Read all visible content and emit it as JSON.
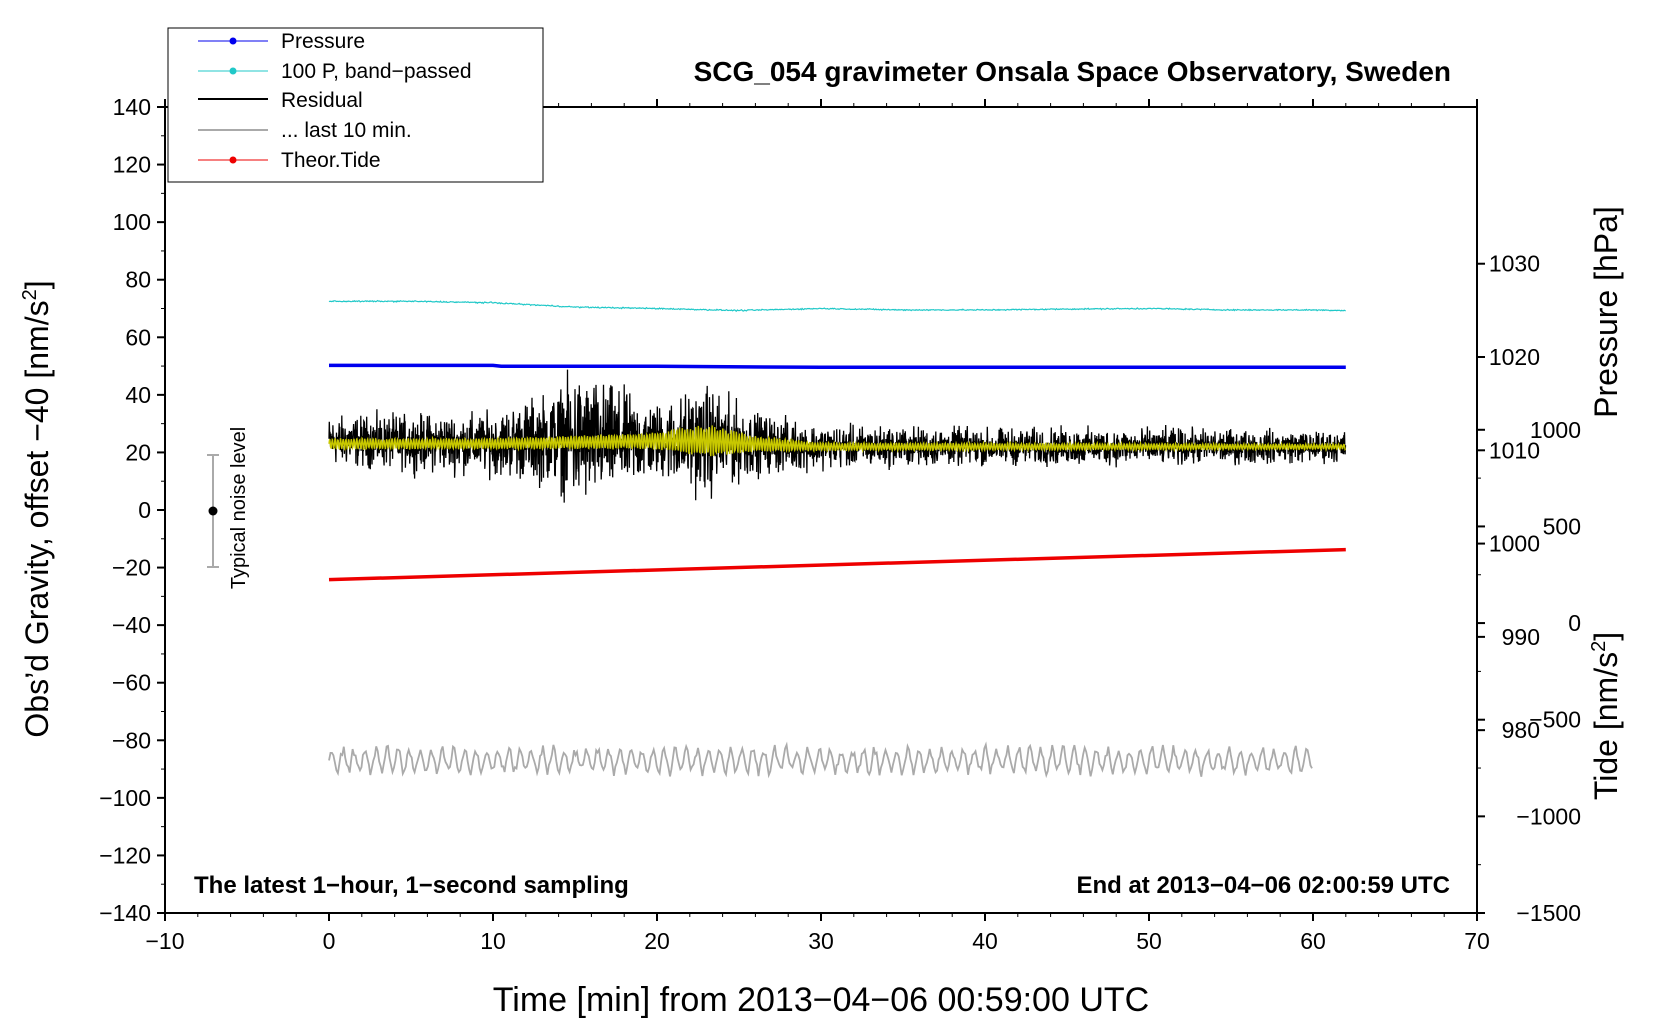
{
  "chart_data": {
    "type": "line",
    "title": "SCG_054 gravimeter Onsala Space Observatory, Sweden",
    "xlabel": "Time [min] from 2013−04−06 00:59:00 UTC",
    "ylabel_left_main": "Obs’d Gravity, offset −40 [nm/s",
    "ylabel_left_sup": "2",
    "ylabel_left_close": "]",
    "ylabel_pressure": "Pressure [hPa]",
    "ylabel_tide_main": "Tide [nm/s",
    "ylabel_tide_sup": "2",
    "ylabel_tide_close": "]",
    "xlim": [
      -10,
      70
    ],
    "ylim": [
      -140,
      140
    ],
    "x_ticks": [
      -10,
      0,
      10,
      20,
      30,
      40,
      50,
      60,
      70
    ],
    "x_tick_labels": [
      "−10",
      "0",
      "10",
      "20",
      "30",
      "40",
      "50",
      "60",
      "70"
    ],
    "y_ticks": [
      -140,
      -120,
      -100,
      -80,
      -60,
      -40,
      -20,
      0,
      20,
      40,
      60,
      80,
      100,
      120,
      140
    ],
    "y_tick_labels": [
      "−140",
      "−120",
      "−100",
      "−80",
      "−60",
      "−40",
      "−20",
      "0",
      "20",
      "40",
      "60",
      "80",
      "100",
      "120",
      "140"
    ],
    "pressure_axis": {
      "ticks": [
        980,
        990,
        1000,
        1010,
        1020,
        1030
      ],
      "tick_labels": [
        "980",
        "990",
        "1000",
        "1010",
        "1020",
        "1030"
      ],
      "range": [
        960.4,
        1046.8
      ]
    },
    "tide_axis": {
      "ticks": [
        -1500,
        -1000,
        -500,
        0,
        500,
        1000
      ],
      "tick_labels": [
        "−1500",
        "−1000",
        "−500",
        "0",
        "500",
        "1000"
      ],
      "range": [
        -1500,
        2670
      ]
    },
    "series": [
      {
        "name": "Pressure",
        "color": "#0000ee",
        "axis": "pressure",
        "x": [
          0,
          10,
          10.5,
          20,
          30,
          40,
          50,
          62
        ],
        "y": [
          1019.1,
          1019.1,
          1019.0,
          1019.0,
          1018.9,
          1018.9,
          1018.9,
          1018.9
        ]
      },
      {
        "name": "100 P, band−passed",
        "color": "#20c8c8",
        "axis": "left",
        "x": [
          0,
          5,
          10,
          15,
          20,
          25,
          30,
          35,
          40,
          45,
          50,
          55,
          60,
          62
        ],
        "y": [
          72.5,
          72.5,
          72,
          70.5,
          70,
          69.3,
          70,
          69.5,
          69.5,
          69.8,
          70,
          69.5,
          69.5,
          69.3
        ]
      },
      {
        "name": "Residual",
        "color": "#000000",
        "axis": "left",
        "x": [
          0,
          10,
          14,
          15,
          20,
          23,
          26,
          30,
          40,
          50,
          62
        ],
        "y": [
          24,
          23,
          25,
          24,
          24,
          24,
          23,
          22,
          22,
          22,
          22
        ],
        "envelope": [
          8,
          10,
          16,
          22,
          12,
          18,
          10,
          7,
          6,
          6,
          5
        ]
      },
      {
        "name": "... last 10 min.",
        "color": "#aaaaaa",
        "axis": "left",
        "x": [
          0,
          60
        ],
        "y": [
          -87,
          -87
        ],
        "envelope": [
          5,
          5
        ]
      },
      {
        "name": "Theor.Tide",
        "color": "#ee0000",
        "axis": "tide",
        "x": [
          0,
          62
        ],
        "y": [
          225,
          380
        ]
      }
    ],
    "filtered_residual": {
      "color": "#c8c800",
      "x": [
        0,
        10,
        20,
        23,
        26,
        30,
        62
      ],
      "y": [
        23,
        23,
        24,
        24,
        23,
        22,
        22
      ],
      "envelope": [
        2,
        2,
        3,
        6,
        3,
        1.5,
        1
      ]
    },
    "noise_bar": {
      "label": "Typical noise level",
      "x": -7,
      "center": 0,
      "low": -20,
      "high": 20
    },
    "annotations": {
      "bottom_left": "The latest 1−hour, 1−second sampling",
      "bottom_right": "End at 2013−04−06 02:00:59 UTC"
    },
    "legend_position": "top-left"
  }
}
